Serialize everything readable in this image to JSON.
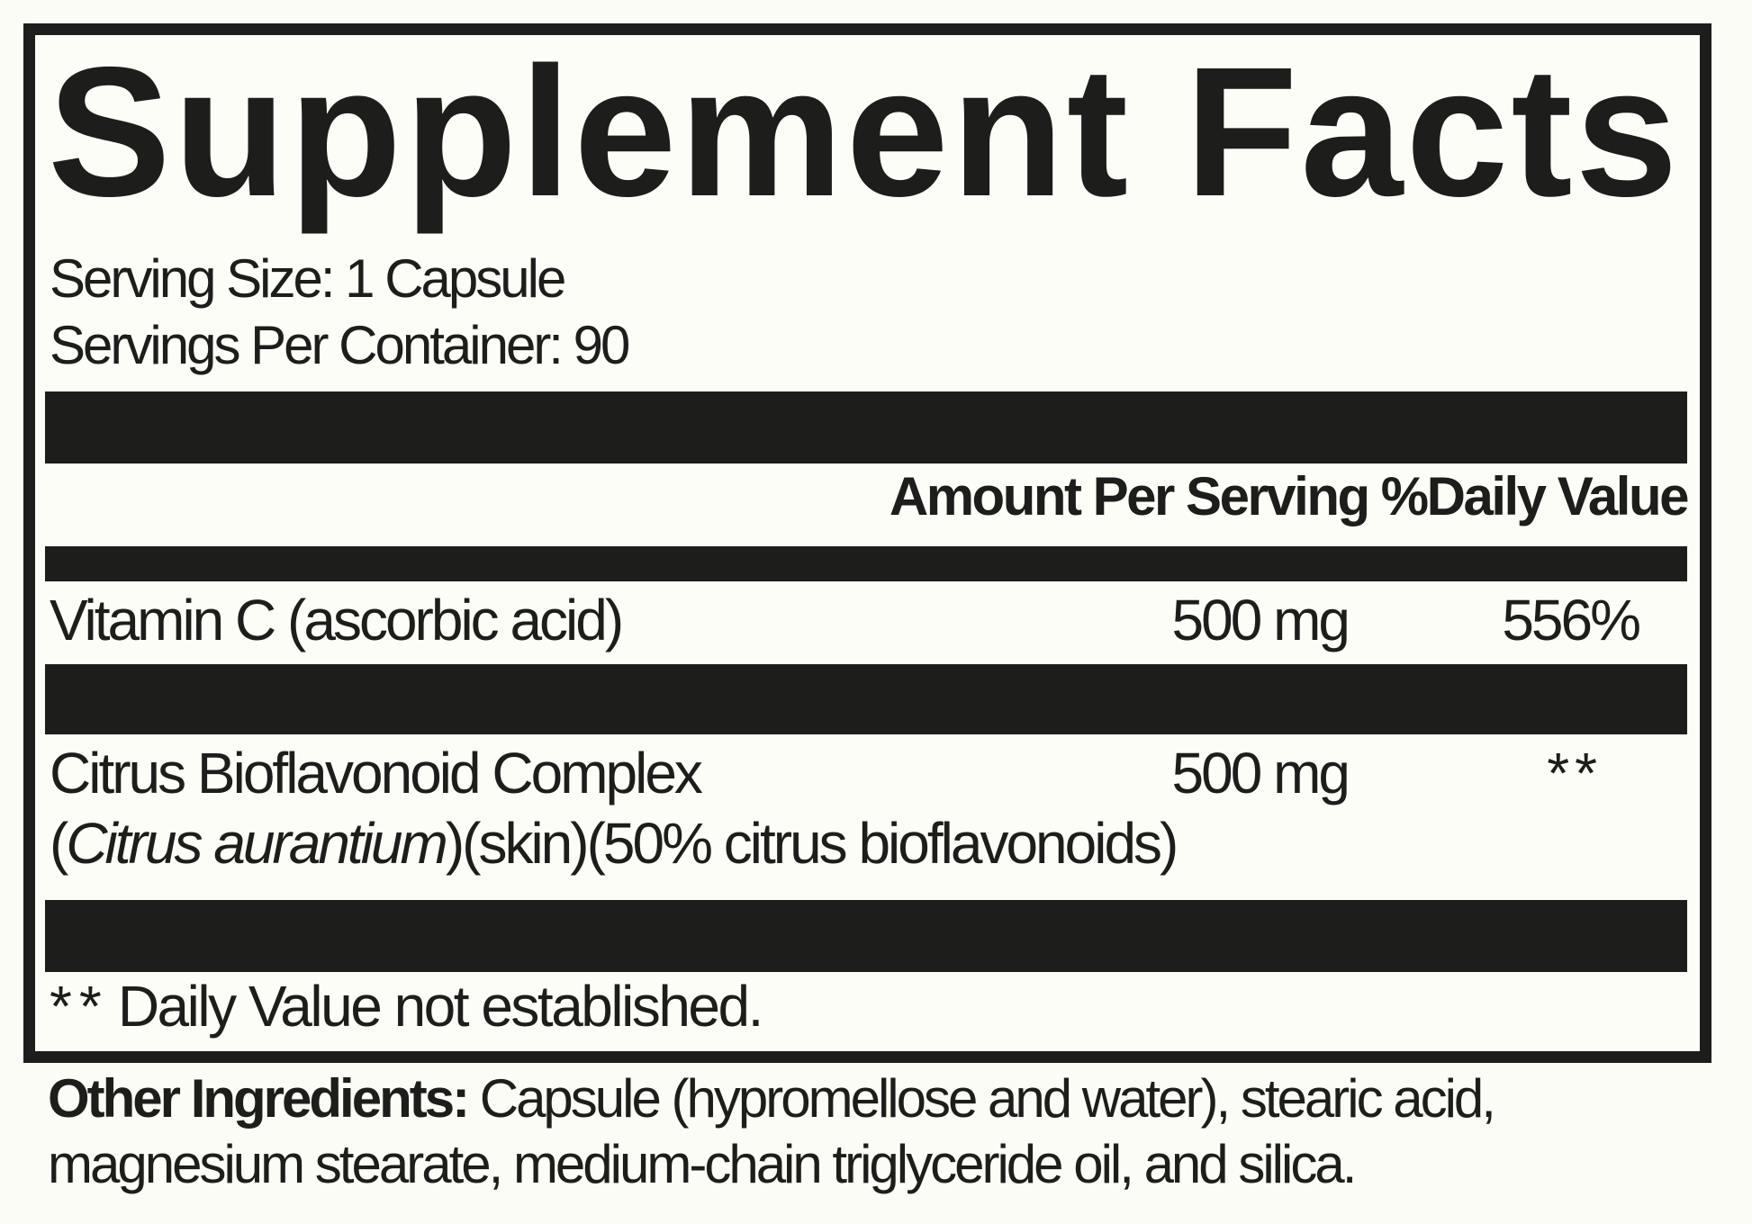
{
  "colors": {
    "ink": "#1d1d1b",
    "background": "#fcfcf6"
  },
  "label": {
    "title": "Supplement Facts",
    "serving": {
      "size_line": "Serving Size: 1 Capsule",
      "per_container_line": "Servings Per Container: 90"
    },
    "table": {
      "column_header": "Amount Per Serving %Daily Value",
      "rows": [
        {
          "name": "Vitamin C (ascorbic acid)",
          "amount": "500 mg",
          "daily_value": "556%"
        },
        {
          "name": "Citrus Bioflavonoid Complex",
          "detail_open_paren": "(",
          "detail_species_italic": "Citrus aurantium",
          "detail_rest": ")(skin)(50% citrus bioflavonoids)",
          "amount": "500 mg",
          "daily_value": "**"
        }
      ],
      "footnote_marker": "**",
      "footnote_text": "Daily Value not established."
    },
    "other_ingredients": {
      "lead": "Other Ingredients:",
      "line1_rest": "Capsule (hypromellose and water), stearic acid,",
      "line2": "magnesium stearate, medium-chain triglyceride oil, and silica."
    }
  }
}
